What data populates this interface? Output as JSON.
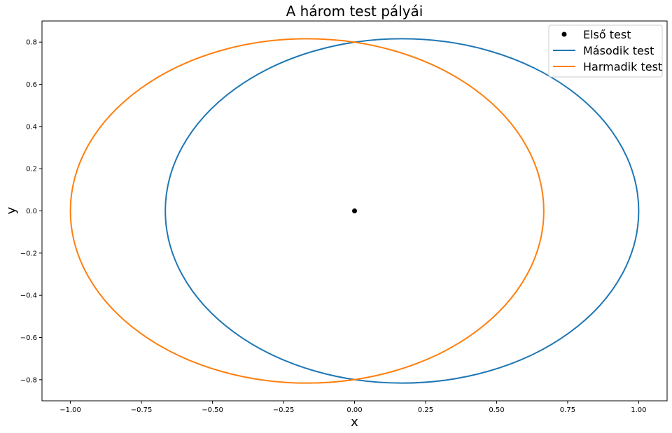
{
  "chart_data": {
    "type": "line",
    "title": "A három test pályái",
    "xlabel": "x",
    "ylabel": "y",
    "xlim": [
      -1.1,
      1.1
    ],
    "ylim": [
      -0.9,
      0.9
    ],
    "xticks": [
      -1.0,
      -0.75,
      -0.5,
      -0.25,
      0.0,
      0.25,
      0.5,
      0.75,
      1.0
    ],
    "xtick_labels": [
      "−1.00",
      "−0.75",
      "−0.50",
      "−0.25",
      "0.00",
      "0.25",
      "0.50",
      "0.75",
      "1.00"
    ],
    "yticks": [
      -0.8,
      -0.6,
      -0.4,
      -0.2,
      0.0,
      0.2,
      0.4,
      0.6,
      0.8
    ],
    "ytick_labels": [
      "−0.8",
      "−0.6",
      "−0.4",
      "−0.2",
      "0.0",
      "0.2",
      "0.4",
      "0.6",
      "0.8"
    ],
    "grid": false,
    "legend_position": "top-right",
    "series": [
      {
        "name": "Első test",
        "kind": "point",
        "color": "#000000",
        "x": [
          0.0
        ],
        "y": [
          0.0
        ]
      },
      {
        "name": "Második test",
        "kind": "ellipse",
        "color": "#1f77b4",
        "x_center": 0.167,
        "y_center": 0.0,
        "x_semi_axis": 0.833,
        "y_semi_axis": 0.816,
        "x_extent": [
          -0.667,
          1.0
        ],
        "y_extent": [
          -0.816,
          0.816
        ]
      },
      {
        "name": "Harmadik test",
        "kind": "ellipse",
        "color": "#ff7f0e",
        "x_center": -0.167,
        "y_center": 0.0,
        "x_semi_axis": 0.833,
        "y_semi_axis": 0.816,
        "x_extent": [
          -1.0,
          0.667
        ],
        "y_extent": [
          -0.816,
          0.816
        ]
      }
    ]
  }
}
